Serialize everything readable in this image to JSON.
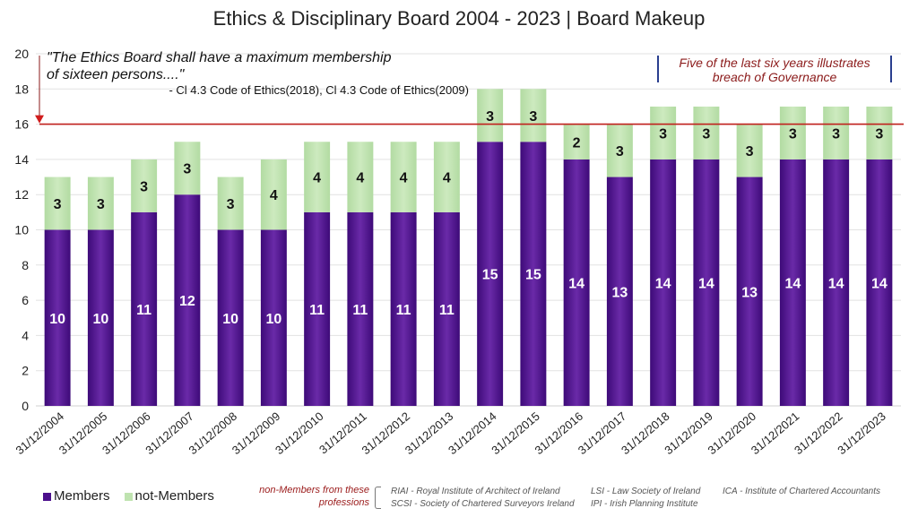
{
  "chart_data": {
    "type": "bar",
    "stacked": true,
    "title": "Ethics & Disciplinary Board 2004 - 2023 | Board Makeup",
    "xlabel": "",
    "ylabel": "",
    "ylim": [
      0,
      20
    ],
    "yticks": [
      0,
      2,
      4,
      6,
      8,
      10,
      12,
      14,
      16,
      18,
      20
    ],
    "grid": true,
    "legend_position": "bottom-left",
    "categories": [
      "31/12/2004",
      "31/12/2005",
      "31/12/2006",
      "31/12/2007",
      "31/12/2008",
      "31/12/2009",
      "31/12/2010",
      "31/12/2011",
      "31/12/2012",
      "31/12/2013",
      "31/12/2014",
      "31/12/2015",
      "31/12/2016",
      "31/12/2017",
      "31/12/2018",
      "31/12/2019",
      "31/12/2020",
      "31/12/2021",
      "31/12/2022",
      "31/12/2023"
    ],
    "series": [
      {
        "name": "Members",
        "color": "#4b0f8c",
        "values": [
          10,
          10,
          11,
          12,
          10,
          10,
          11,
          11,
          11,
          11,
          15,
          15,
          14,
          13,
          14,
          14,
          13,
          14,
          14,
          14
        ]
      },
      {
        "name": "not-Members",
        "color": "#bfe3b0",
        "values": [
          3,
          3,
          3,
          3,
          3,
          4,
          4,
          4,
          4,
          4,
          3,
          3,
          2,
          3,
          3,
          3,
          3,
          3,
          3,
          3
        ]
      }
    ],
    "reference_line": {
      "value": 16,
      "color": "#c0201c",
      "label": "maximum membership"
    },
    "annotations": {
      "quote_line1": "\"The Ethics Board shall have a maximum membership",
      "quote_line2": "of sixteen persons....\"",
      "citation": "- Cl 4.3 Code of Ethics(2018), Cl 4.3 Code of Ethics(2009)",
      "breach_line1": "Five of the last six years illustrates",
      "breach_line2": "breach of Governance"
    }
  },
  "legend": {
    "members": "Members",
    "not_members": "not-Members"
  },
  "professions": {
    "heading_line1": "non-Members from these",
    "heading_line2": "professions",
    "items": [
      "RIAI - Royal Institute of Architect of Ireland",
      "SCSI - Society of Chartered Surveyors Ireland",
      "LSI - Law Society of Ireland",
      "IPI - Irish Planning Institute",
      "ICA - Institute of Chartered Accountants"
    ]
  }
}
